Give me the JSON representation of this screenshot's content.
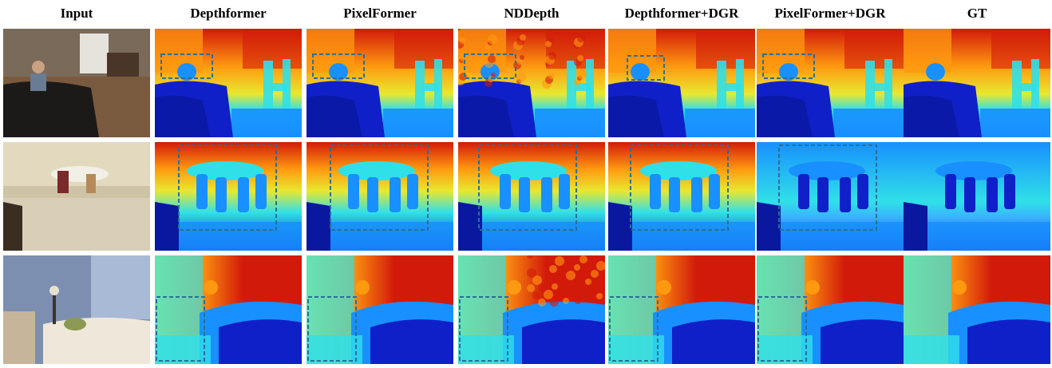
{
  "columns": {
    "input": "Input",
    "depthformer": "Depthformer",
    "pixelformer": "PixelFormer",
    "nddepth": "NDDepth",
    "depthformer_dgr": "Depthformer+DGR",
    "pixelformer_dgr": "PixelFormer+DGR",
    "gt": "GT"
  },
  "colors": {
    "far": "#d21a0a",
    "mid_far": "#ff9a10",
    "mid": "#e8e830",
    "near_mid": "#30e0e8",
    "near": "#1890ff",
    "closest": "#1020c8",
    "highlight_box": "#2a6f97"
  }
}
